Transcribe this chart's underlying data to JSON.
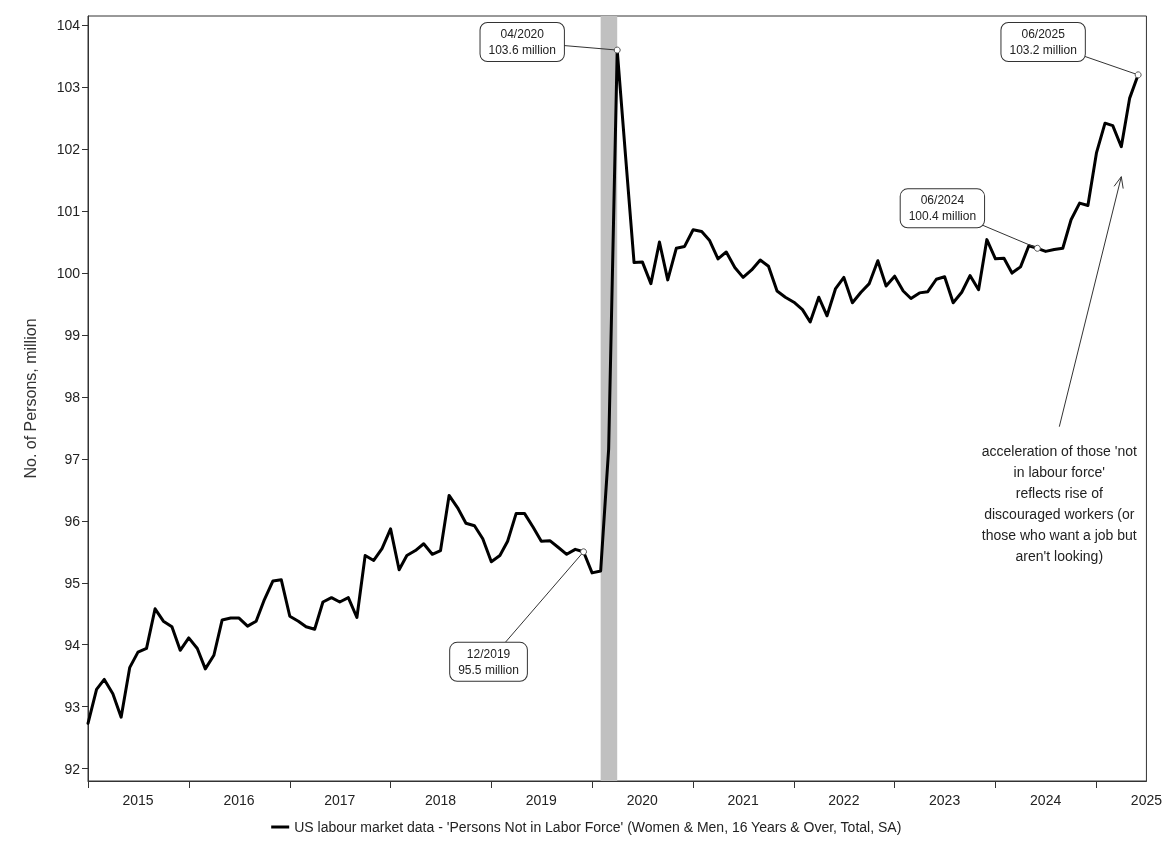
{
  "chart_data": {
    "type": "line",
    "ylabel": "No. of Persons, million",
    "x": [
      "2015-01",
      "2015-02",
      "2015-03",
      "2015-04",
      "2015-05",
      "2015-06",
      "2015-07",
      "2015-08",
      "2015-09",
      "2015-10",
      "2015-11",
      "2015-12",
      "2016-01",
      "2016-02",
      "2016-03",
      "2016-04",
      "2016-05",
      "2016-06",
      "2016-07",
      "2016-08",
      "2016-09",
      "2016-10",
      "2016-11",
      "2016-12",
      "2017-01",
      "2017-02",
      "2017-03",
      "2017-04",
      "2017-05",
      "2017-06",
      "2017-07",
      "2017-08",
      "2017-09",
      "2017-10",
      "2017-11",
      "2017-12",
      "2018-01",
      "2018-02",
      "2018-03",
      "2018-04",
      "2018-05",
      "2018-06",
      "2018-07",
      "2018-08",
      "2018-09",
      "2018-10",
      "2018-11",
      "2018-12",
      "2019-01",
      "2019-02",
      "2019-03",
      "2019-04",
      "2019-05",
      "2019-06",
      "2019-07",
      "2019-08",
      "2019-09",
      "2019-10",
      "2019-11",
      "2019-12",
      "2020-01",
      "2020-02",
      "2020-03",
      "2020-04",
      "2020-05",
      "2020-06",
      "2020-07",
      "2020-08",
      "2020-09",
      "2020-10",
      "2020-11",
      "2020-12",
      "2021-01",
      "2021-02",
      "2021-03",
      "2021-04",
      "2021-05",
      "2021-06",
      "2021-07",
      "2021-08",
      "2021-09",
      "2021-10",
      "2021-11",
      "2021-12",
      "2022-01",
      "2022-02",
      "2022-03",
      "2022-04",
      "2022-05",
      "2022-06",
      "2022-07",
      "2022-08",
      "2022-09",
      "2022-10",
      "2022-11",
      "2022-12",
      "2023-01",
      "2023-02",
      "2023-03",
      "2023-04",
      "2023-05",
      "2023-06",
      "2023-07",
      "2023-08",
      "2023-09",
      "2023-10",
      "2023-11",
      "2023-12",
      "2024-01",
      "2024-02",
      "2024-03",
      "2024-04",
      "2024-05",
      "2024-06",
      "2024-07",
      "2024-08",
      "2024-09",
      "2024-10",
      "2024-11",
      "2024-12",
      "2025-01",
      "2025-02",
      "2025-03",
      "2025-04",
      "2025-05",
      "2025-06"
    ],
    "series": [
      {
        "name": "US labour market data - 'Persons Not in Labor Force' (Women & Men, 16 Years & Over, Total, SA)",
        "color": "#000000",
        "values": [
          92.73,
          93.28,
          93.44,
          93.21,
          92.83,
          93.63,
          93.88,
          93.94,
          94.58,
          94.38,
          94.29,
          93.91,
          94.11,
          93.94,
          93.61,
          93.83,
          94.4,
          94.43,
          94.43,
          94.3,
          94.38,
          94.73,
          95.03,
          95.05,
          94.46,
          94.38,
          94.29,
          94.25,
          94.69,
          94.76,
          94.69,
          94.76,
          94.44,
          95.44,
          95.36,
          95.55,
          95.87,
          95.21,
          95.44,
          95.52,
          95.63,
          95.46,
          95.52,
          96.41,
          96.21,
          95.96,
          95.92,
          95.71,
          95.34,
          95.44,
          95.67,
          96.12,
          96.12,
          95.9,
          95.67,
          95.68,
          95.57,
          95.46,
          95.54,
          95.5,
          95.16,
          95.19,
          97.16,
          103.6,
          101.9,
          100.17,
          100.18,
          99.83,
          100.5,
          99.89,
          100.4,
          100.43,
          100.7,
          100.67,
          100.53,
          100.23,
          100.34,
          100.09,
          99.93,
          100.05,
          100.21,
          100.11,
          99.71,
          99.61,
          99.53,
          99.41,
          99.21,
          99.61,
          99.31,
          99.75,
          99.93,
          99.52,
          99.69,
          99.83,
          100.2,
          99.79,
          99.95,
          99.71,
          99.59,
          99.68,
          99.7,
          99.9,
          99.94,
          99.52,
          99.69,
          99.96,
          99.73,
          100.54,
          100.23,
          100.24,
          100.0,
          100.1,
          100.44,
          100.4,
          100.35,
          100.38,
          100.4,
          100.86,
          101.13,
          101.09,
          101.94,
          102.42,
          102.38,
          102.04,
          102.82,
          103.2
        ]
      }
    ],
    "xlim": [
      "2015-01",
      "2025-07"
    ],
    "xticks": [
      {
        "value": "2015-01",
        "label": null
      },
      {
        "value": "2015-07",
        "label": "2015"
      },
      {
        "value": "2016-01",
        "label": null
      },
      {
        "value": "2016-07",
        "label": "2016"
      },
      {
        "value": "2017-01",
        "label": null
      },
      {
        "value": "2017-07",
        "label": "2017"
      },
      {
        "value": "2018-01",
        "label": null
      },
      {
        "value": "2018-07",
        "label": "2018"
      },
      {
        "value": "2019-01",
        "label": null
      },
      {
        "value": "2019-07",
        "label": "2019"
      },
      {
        "value": "2020-01",
        "label": null
      },
      {
        "value": "2020-07",
        "label": "2020"
      },
      {
        "value": "2021-01",
        "label": null
      },
      {
        "value": "2021-07",
        "label": "2021"
      },
      {
        "value": "2022-01",
        "label": null
      },
      {
        "value": "2022-07",
        "label": "2022"
      },
      {
        "value": "2023-01",
        "label": null
      },
      {
        "value": "2023-07",
        "label": "2023"
      },
      {
        "value": "2024-01",
        "label": null
      },
      {
        "value": "2024-07",
        "label": "2024"
      },
      {
        "value": "2025-01",
        "label": null
      },
      {
        "value": "2025-07",
        "label": "2025"
      }
    ],
    "ylim": [
      91.8,
      104.15
    ],
    "yticks": [
      92,
      93,
      94,
      95,
      96,
      97,
      98,
      99,
      100,
      101,
      102,
      103,
      104
    ],
    "bands": [
      {
        "axis": "x",
        "from": "2020-02",
        "to": "2020-04",
        "color": "#c0c0c0"
      }
    ],
    "annotations": [
      {
        "text": "12/2019\n95.5 million",
        "x": "2019-12",
        "y": 95.5
      },
      {
        "text": "04/2020\n103.6 million",
        "x": "2020-04",
        "y": 103.6
      },
      {
        "text": "06/2024\n100.4 million",
        "x": "2024-06",
        "y": 100.4
      },
      {
        "text": "06/2025\n103.2 million",
        "x": "2025-06",
        "y": 103.2
      },
      "acceleration of those 'not\nin labour force'\nreflects rise of\ndiscouraged workers (or\nthose who want a job but\naren't looking)"
    ],
    "grid": false,
    "legend": "bottom",
    "marker": "none",
    "line_style": "solid"
  }
}
